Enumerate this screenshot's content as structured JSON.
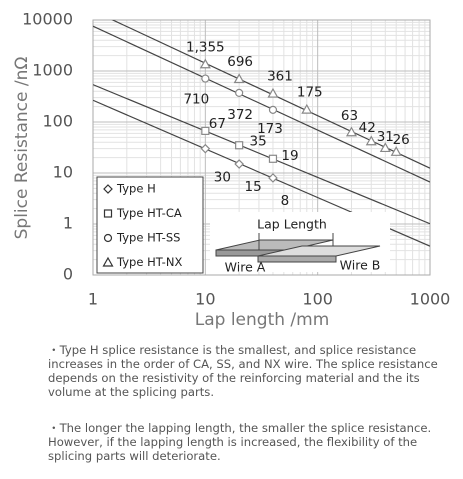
{
  "chart_data": {
    "type": "scatter",
    "xlabel": "Lap length /mm",
    "ylabel": "Splice Resistance /nΩ",
    "xlog": true,
    "ylog": true,
    "grid": true,
    "xlim": [
      1,
      1000
    ],
    "xticks": [
      1,
      10,
      100,
      1000
    ],
    "ylim": [
      0.1,
      10000
    ],
    "yticks": [
      {
        "value": 0.1,
        "label": "0"
      },
      1,
      10,
      100,
      1000,
      10000
    ],
    "legend": "lower left",
    "series": [
      {
        "name": "Type H",
        "marker": "diamond",
        "color": "#888888",
        "x": [
          10,
          20,
          40
        ],
        "values": [
          30,
          15,
          8
        ]
      },
      {
        "name": "Type HT-CA",
        "marker": "square",
        "color": "#888888",
        "x": [
          10,
          20,
          40
        ],
        "values": [
          67,
          35,
          19
        ]
      },
      {
        "name": "Type HT-SS",
        "marker": "circle",
        "color": "#888888",
        "x": [
          10,
          20,
          40
        ],
        "values": [
          710,
          372,
          173
        ]
      },
      {
        "name": "Type HT-NX",
        "marker": "triangle",
        "color": "#888888",
        "x": [
          10,
          20,
          40,
          80,
          200,
          300,
          400,
          500
        ],
        "values": [
          1355,
          696,
          361,
          175,
          63,
          42,
          31,
          26
        ],
        "value_labels": [
          "1,355",
          "696",
          "361",
          "175",
          "63",
          "42",
          "31",
          "26"
        ]
      }
    ],
    "diagram": {
      "title": "Lap Length",
      "left": "Wire A",
      "right": "Wire B"
    }
  },
  "notes": [
    "・Type H splice resistance is the smallest, and splice resistance increases in the order of CA, SS, and NX wire. The splice resistance depends on the resistivity of the reinforcing material and the its volume at the splicing parts.",
    "・The longer the lapping length, the smaller the splice resistance. However, if the lapping length is increased, the flexibility of the splicing parts will deteriorate."
  ]
}
